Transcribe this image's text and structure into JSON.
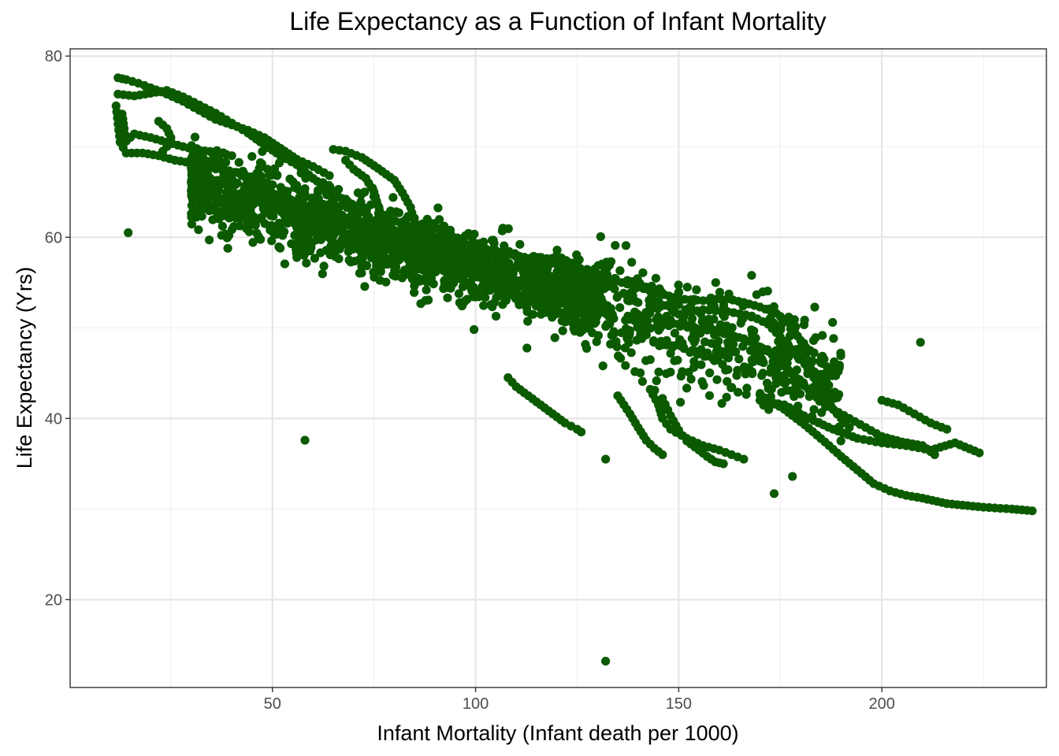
{
  "chart_data": {
    "type": "scatter",
    "title": "Life Expectancy as a Function of Infant Mortality",
    "xlabel": "Infant Mortality (Infant death per 1000)",
    "ylabel": "Life Expectancy (Yrs)",
    "xlim": [
      0.2,
      240.5
    ],
    "ylim": [
      10.3,
      80.8
    ],
    "x_ticks": [
      50,
      100,
      150,
      200
    ],
    "x_tick_labels": [
      "50",
      "100",
      "150",
      "200"
    ],
    "y_ticks": [
      20,
      40,
      60,
      80
    ],
    "y_tick_labels": [
      "20",
      "40",
      "60",
      "80"
    ],
    "x_minor_ticks": [
      25,
      75,
      125,
      175,
      225
    ],
    "y_minor_ticks": [
      30,
      50,
      70
    ],
    "grid": true,
    "point_color": "#0b5a00",
    "series": [
      {
        "values_note": "",
        "x": [],
        "y": []
      }
    ],
    "trajectories": [
      {
        "points": [
          [
            12,
            77.6
          ],
          [
            14,
            77.4
          ],
          [
            17,
            77.0
          ],
          [
            20,
            76.5
          ],
          [
            24,
            75.8
          ],
          [
            28,
            75.0
          ],
          [
            32,
            74.0
          ],
          [
            36,
            73.0
          ],
          [
            40,
            72.4
          ],
          [
            44,
            71.8
          ],
          [
            48,
            71.0
          ],
          [
            52,
            69.8
          ],
          [
            56,
            68.6
          ],
          [
            60,
            67.8
          ],
          [
            64,
            66.8
          ]
        ]
      },
      {
        "points": [
          [
            12,
            75.8
          ],
          [
            16,
            75.6
          ],
          [
            20,
            75.9
          ],
          [
            24,
            76.2
          ],
          [
            28,
            75.5
          ],
          [
            32,
            74.6
          ],
          [
            36,
            73.7
          ],
          [
            40,
            72.6
          ],
          [
            44,
            71.5
          ],
          [
            48,
            70.2
          ],
          [
            52,
            69.0
          ],
          [
            56,
            68.0
          ],
          [
            60,
            66.5
          ],
          [
            64,
            65.2
          ],
          [
            68,
            64.0
          ]
        ]
      },
      {
        "points": [
          [
            11.5,
            74.5
          ],
          [
            12,
            72.5
          ],
          [
            12.5,
            70.5
          ],
          [
            14,
            69.3
          ],
          [
            18,
            69.3
          ],
          [
            22,
            69.0
          ],
          [
            26,
            68.5
          ],
          [
            30,
            68.2
          ],
          [
            34,
            68.0
          ],
          [
            38,
            67.5
          ],
          [
            42,
            67.0
          ],
          [
            46,
            66.5
          ],
          [
            50,
            65.8
          ]
        ]
      },
      {
        "points": [
          [
            13,
            73.6
          ],
          [
            13.5,
            72.0
          ],
          [
            14,
            70.6
          ],
          [
            16,
            71.4
          ],
          [
            20,
            71.0
          ],
          [
            24,
            70.5
          ],
          [
            28,
            70.0
          ],
          [
            32,
            69.6
          ],
          [
            36,
            69.4
          ],
          [
            40,
            69.0
          ]
        ]
      },
      {
        "points": [
          [
            22,
            72.8
          ],
          [
            24,
            72.0
          ],
          [
            25,
            71.0
          ],
          [
            24,
            70.0
          ],
          [
            22,
            69.0
          ]
        ]
      },
      {
        "points": [
          [
            65,
            69.7
          ],
          [
            68,
            69.5
          ],
          [
            72,
            68.8
          ],
          [
            76,
            67.6
          ],
          [
            80,
            66.3
          ],
          [
            82,
            64.9
          ],
          [
            84,
            63.3
          ],
          [
            85,
            61.5
          ]
        ]
      },
      {
        "points": [
          [
            68,
            68.5
          ],
          [
            70,
            67.5
          ],
          [
            73,
            66.5
          ],
          [
            75,
            65.0
          ],
          [
            76,
            63.5
          ],
          [
            77,
            62.0
          ]
        ]
      },
      {
        "points": [
          [
            80,
            60.5
          ],
          [
            88,
            60.0
          ],
          [
            96,
            59.5
          ],
          [
            104,
            58.5
          ],
          [
            112,
            57.8
          ],
          [
            120,
            57.0
          ],
          [
            126,
            56.0
          ],
          [
            130,
            55.0
          ]
        ]
      },
      {
        "points": [
          [
            120,
            58.0
          ],
          [
            128,
            56.0
          ],
          [
            136,
            55.0
          ],
          [
            144,
            54.0
          ],
          [
            150,
            53.2
          ],
          [
            156,
            53.0
          ],
          [
            162,
            53.2
          ],
          [
            166,
            52.8
          ],
          [
            170,
            52.3
          ],
          [
            174,
            51.6
          ],
          [
            177,
            50.6
          ],
          [
            180,
            48.6
          ],
          [
            182,
            46.0
          ],
          [
            184,
            44.0
          ],
          [
            186,
            42.4
          ],
          [
            188,
            41.0
          ],
          [
            190,
            40.0
          ]
        ]
      },
      {
        "points": [
          [
            150,
            51.5
          ],
          [
            156,
            52.0
          ],
          [
            162,
            51.8
          ],
          [
            168,
            51.3
          ],
          [
            172,
            50.4
          ],
          [
            175,
            49.0
          ],
          [
            178,
            47.6
          ],
          [
            181,
            46.0
          ],
          [
            184,
            44.0
          ],
          [
            186,
            42.2
          ],
          [
            189,
            40.5
          ],
          [
            192,
            39.0
          ]
        ]
      },
      {
        "points": [
          [
            154,
            50.0
          ],
          [
            160,
            49.5
          ],
          [
            166,
            48.8
          ],
          [
            172,
            47.4
          ],
          [
            176,
            45.8
          ],
          [
            180,
            44.0
          ],
          [
            184,
            42.3
          ],
          [
            188,
            41.0
          ],
          [
            192,
            40.0
          ],
          [
            196,
            39.0
          ],
          [
            200,
            38.0
          ],
          [
            205,
            37.4
          ],
          [
            210,
            37.0
          ],
          [
            213,
            36.0
          ]
        ]
      },
      {
        "points": [
          [
            170,
            42.0
          ],
          [
            176,
            41.5
          ],
          [
            182,
            40.0
          ],
          [
            188,
            38.8
          ],
          [
            194,
            37.8
          ],
          [
            200,
            37.3
          ],
          [
            206,
            37.0
          ],
          [
            212,
            36.5
          ],
          [
            218,
            37.3
          ],
          [
            224,
            36.2
          ]
        ]
      },
      {
        "points": [
          [
            170,
            42.6
          ],
          [
            176,
            41.0
          ],
          [
            181,
            39.3
          ],
          [
            186,
            37.4
          ],
          [
            190,
            35.8
          ],
          [
            194,
            34.3
          ],
          [
            198,
            32.8
          ],
          [
            202,
            32.0
          ],
          [
            206,
            31.5
          ],
          [
            210,
            31.2
          ],
          [
            216,
            30.6
          ],
          [
            225,
            30.2
          ],
          [
            232,
            30.0
          ],
          [
            237,
            29.8
          ]
        ]
      },
      {
        "points": [
          [
            200,
            42.0
          ],
          [
            204,
            41.5
          ],
          [
            208,
            40.5
          ],
          [
            212,
            39.5
          ],
          [
            216,
            38.8
          ]
        ]
      },
      {
        "points": [
          [
            143,
            43.2
          ],
          [
            145,
            41.5
          ],
          [
            146,
            40.0
          ],
          [
            148,
            38.8
          ],
          [
            152,
            37.8
          ],
          [
            156,
            37.0
          ],
          [
            160,
            36.5
          ],
          [
            163,
            36.0
          ],
          [
            166,
            35.5
          ]
        ]
      },
      {
        "points": [
          [
            135,
            42.5
          ],
          [
            138,
            40.5
          ],
          [
            140,
            39.0
          ],
          [
            142,
            37.6
          ],
          [
            144,
            36.7
          ],
          [
            146,
            36.0
          ]
        ]
      },
      {
        "points": [
          [
            108,
            44.5
          ],
          [
            110,
            43.5
          ],
          [
            113,
            42.5
          ],
          [
            116,
            41.5
          ],
          [
            119,
            40.5
          ],
          [
            122,
            39.5
          ],
          [
            125,
            38.8
          ],
          [
            126,
            38.5
          ]
        ]
      },
      {
        "points": [
          [
            146,
            42.2
          ],
          [
            148,
            40.3
          ],
          [
            150,
            38.7
          ],
          [
            152,
            37.5
          ],
          [
            155,
            36.5
          ],
          [
            157,
            35.8
          ],
          [
            159,
            35.2
          ],
          [
            161,
            35.0
          ]
        ]
      }
    ],
    "outliers": [
      [
        14.5,
        60.5
      ],
      [
        58,
        37.6
      ],
      [
        132,
        13.2
      ],
      [
        173.5,
        31.7
      ],
      [
        178,
        33.6
      ],
      [
        132,
        35.5
      ],
      [
        209.5,
        48.4
      ]
    ]
  }
}
